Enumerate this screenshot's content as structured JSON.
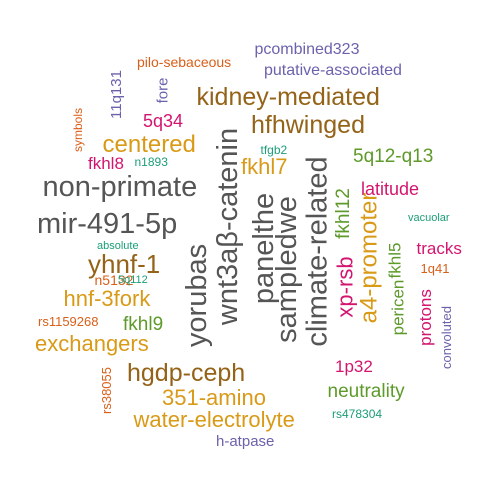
{
  "colors": {
    "gray": "#555555",
    "brown": "#946318",
    "gold": "#d99a17",
    "magenta": "#d4156f",
    "green": "#5d9a2a",
    "purple": "#6b62ad",
    "teal": "#1b9e77",
    "orange": "#d95f1a"
  },
  "words": [
    {
      "text": "pcombined323",
      "color": "purple"
    },
    {
      "text": "pilo-sebaceous",
      "color": "orange"
    },
    {
      "text": "putative-associated",
      "color": "purple"
    },
    {
      "text": "11q131",
      "color": "purple"
    },
    {
      "text": "fore",
      "color": "purple"
    },
    {
      "text": "kidney-mediated",
      "color": "brown"
    },
    {
      "text": "symbols",
      "color": "orange"
    },
    {
      "text": "5q34",
      "color": "magenta"
    },
    {
      "text": "hfhwinged",
      "color": "brown"
    },
    {
      "text": "centered",
      "color": "gold"
    },
    {
      "text": "fkhl8",
      "color": "magenta"
    },
    {
      "text": "n1893",
      "color": "teal"
    },
    {
      "text": "tfgb2",
      "color": "teal"
    },
    {
      "text": "fkhl7",
      "color": "gold"
    },
    {
      "text": "5q12-q13",
      "color": "green"
    },
    {
      "text": "non-primate",
      "color": "gray"
    },
    {
      "text": "wnt3aβ-catenin",
      "color": "gray"
    },
    {
      "text": "panelthe",
      "color": "gray"
    },
    {
      "text": "sampledwe",
      "color": "gray"
    },
    {
      "text": "climate-related",
      "color": "gray"
    },
    {
      "text": "fkhl12",
      "color": "green"
    },
    {
      "text": "latitude",
      "color": "magenta"
    },
    {
      "text": "mir-491-5p",
      "color": "gray"
    },
    {
      "text": "a4-promoter",
      "color": "gold"
    },
    {
      "text": "vacuolar",
      "color": "teal"
    },
    {
      "text": "absolute",
      "color": "teal"
    },
    {
      "text": "yorubas",
      "color": "gray"
    },
    {
      "text": "xp-rsb",
      "color": "magenta"
    },
    {
      "text": "fkhl5",
      "color": "green"
    },
    {
      "text": "tracks",
      "color": "magenta"
    },
    {
      "text": "yhnf-1",
      "color": "brown"
    },
    {
      "text": "n5132",
      "color": "orange"
    },
    {
      "text": "5q112",
      "color": "teal"
    },
    {
      "text": "1q41",
      "color": "orange"
    },
    {
      "text": "hnf-3fork",
      "color": "gold"
    },
    {
      "text": "pericen",
      "color": "green"
    },
    {
      "text": "rs1159268",
      "color": "orange"
    },
    {
      "text": "fkhl9",
      "color": "green"
    },
    {
      "text": "protons",
      "color": "magenta"
    },
    {
      "text": "convoluted",
      "color": "purple"
    },
    {
      "text": "exchangers",
      "color": "gold"
    },
    {
      "text": "1p32",
      "color": "magenta"
    },
    {
      "text": "hgdp-ceph",
      "color": "brown"
    },
    {
      "text": "rs38055",
      "color": "orange"
    },
    {
      "text": "351-amino",
      "color": "gold"
    },
    {
      "text": "neutrality",
      "color": "green"
    },
    {
      "text": "water-electrolyte",
      "color": "gold"
    },
    {
      "text": "rs478304",
      "color": "teal"
    },
    {
      "text": "h-atpase",
      "color": "purple"
    }
  ]
}
